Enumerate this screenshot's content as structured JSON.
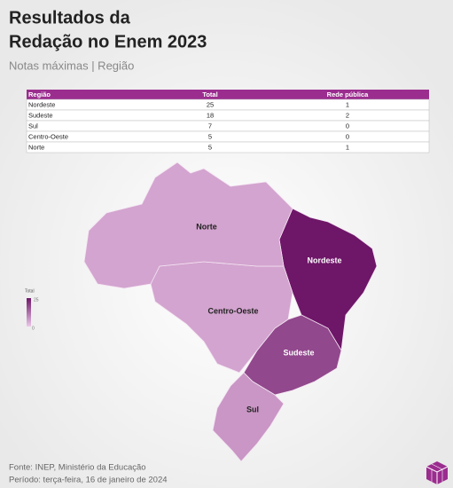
{
  "title_lines": [
    "Resultados da",
    "Redação no Enem 2023"
  ],
  "subtitle": "Notas máximas | Região",
  "table": {
    "headers": [
      "Região",
      "Total",
      "Rede pública"
    ],
    "rows": [
      [
        "Nordeste",
        25,
        1
      ],
      [
        "Sudeste",
        18,
        2
      ],
      [
        "Sul",
        7,
        0
      ],
      [
        "Centro-Oeste",
        5,
        0
      ],
      [
        "Norte",
        5,
        1
      ]
    ]
  },
  "legend": {
    "title": "Total",
    "max": 25,
    "min": 0,
    "color_low": "#ecc8e9",
    "color_high": "#6e1668"
  },
  "footer": [
    "Fonte: INEP, Ministério da Educação",
    "Período: terça-feira, 16 de janeiro de 2024"
  ]
}
